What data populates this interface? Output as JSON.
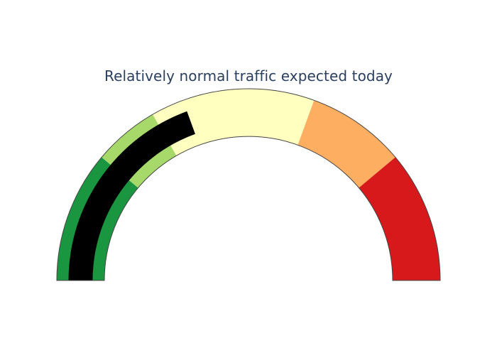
{
  "chart_data": {
    "type": "gauge",
    "title": "Relatively normal traffic expected today",
    "value": 70,
    "range": [
      0,
      180
    ],
    "bar_color": "#000000",
    "steps": [
      {
        "range": [
          0,
          40
        ],
        "color": "#1a9641"
      },
      {
        "range": [
          40,
          60
        ],
        "color": "#a6d96a"
      },
      {
        "range": [
          60,
          110
        ],
        "color": "#ffffc0"
      },
      {
        "range": [
          110,
          140
        ],
        "color": "#fdae61"
      },
      {
        "range": [
          140,
          180
        ],
        "color": "#d7191c"
      }
    ]
  }
}
